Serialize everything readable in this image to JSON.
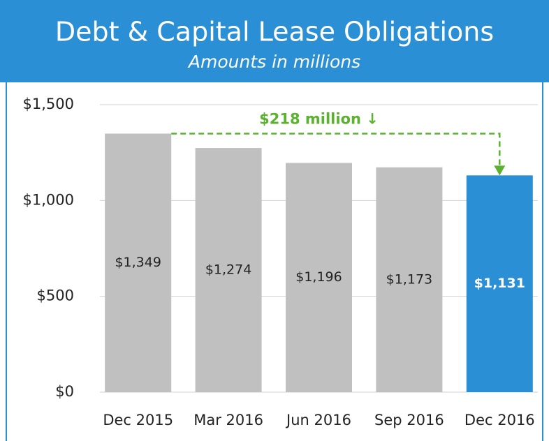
{
  "chart_data": {
    "type": "bar",
    "title": "Debt & Capital Lease Obligations",
    "subtitle": "Amounts in millions",
    "categories": [
      "Dec 2015",
      "Mar 2016",
      "Jun 2016",
      "Sep 2016",
      "Dec 2016"
    ],
    "values": [
      1349,
      1274,
      1196,
      1173,
      1131
    ],
    "value_labels": [
      "$1,349",
      "$1,274",
      "$1,196",
      "$1,173",
      "$1,131"
    ],
    "colors": [
      "#c0c0c0",
      "#c0c0c0",
      "#c0c0c0",
      "#c0c0c0",
      "#2a8fd4"
    ],
    "ylim": [
      0,
      1500
    ],
    "yticks": [
      {
        "value": 0,
        "label": "$0"
      },
      {
        "value": 500,
        "label": "$500"
      },
      {
        "value": 1000,
        "label": "$1,000"
      },
      {
        "value": 1500,
        "label": "$1,500"
      }
    ],
    "grid": true,
    "annotation": {
      "text": "$218 million ↓",
      "color": "#5bb130"
    },
    "header_color": "#2a8fd4"
  }
}
